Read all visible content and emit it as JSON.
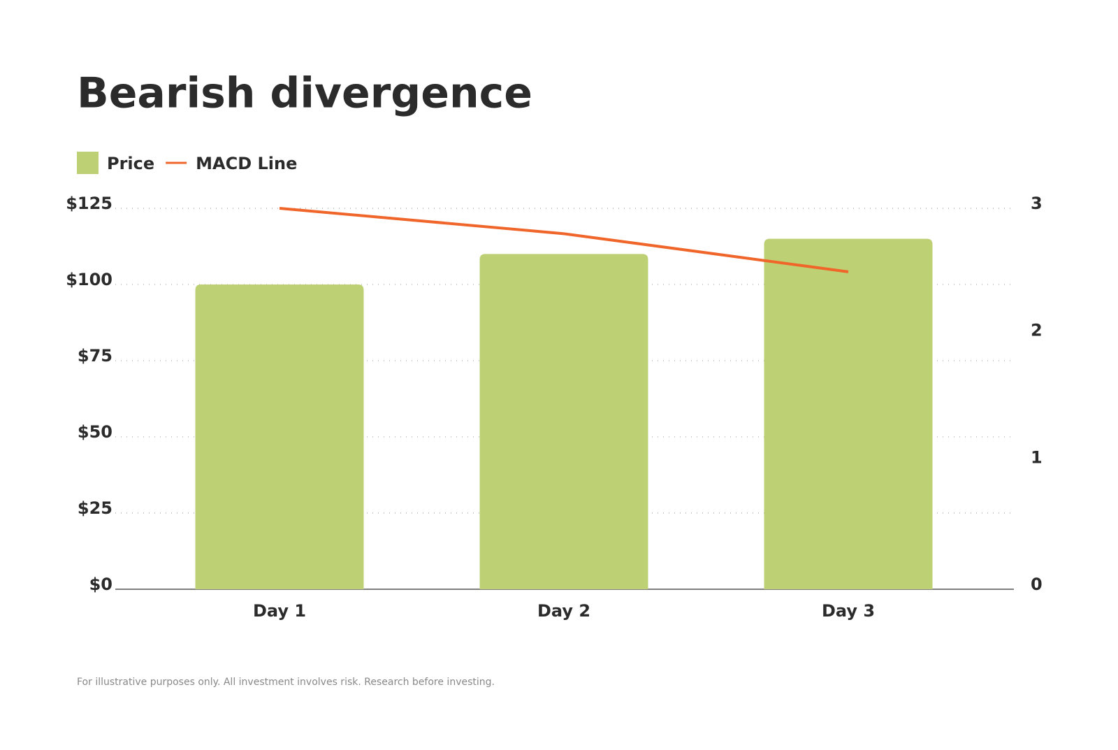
{
  "chart_data": {
    "type": "bar",
    "title": "Bearish divergence",
    "categories": [
      "Day 1",
      "Day 2",
      "Day 3"
    ],
    "series": [
      {
        "name": "Price",
        "color": "#bdd074",
        "values": [
          100,
          110,
          115
        ]
      },
      {
        "name": "MACD Line",
        "color": "#f0652a",
        "axis": "y2",
        "type": "line",
        "values": [
          3.0,
          2.8,
          2.5
        ]
      }
    ],
    "ylim": [
      0,
      125
    ],
    "yticks": [
      {
        "value": 0,
        "label": "$0"
      },
      {
        "value": 25,
        "label": "$25"
      },
      {
        "value": 50,
        "label": "$50"
      },
      {
        "value": 75,
        "label": "$75"
      },
      {
        "value": 100,
        "label": "$100"
      },
      {
        "value": 125,
        "label": "$125"
      }
    ],
    "y2lim": [
      0,
      3
    ],
    "y2ticks": [
      0,
      1,
      2,
      3
    ],
    "grid": true,
    "legend": "top-left",
    "footnote": "For illustrative purposes only. All investment involves risk. Research before investing."
  }
}
